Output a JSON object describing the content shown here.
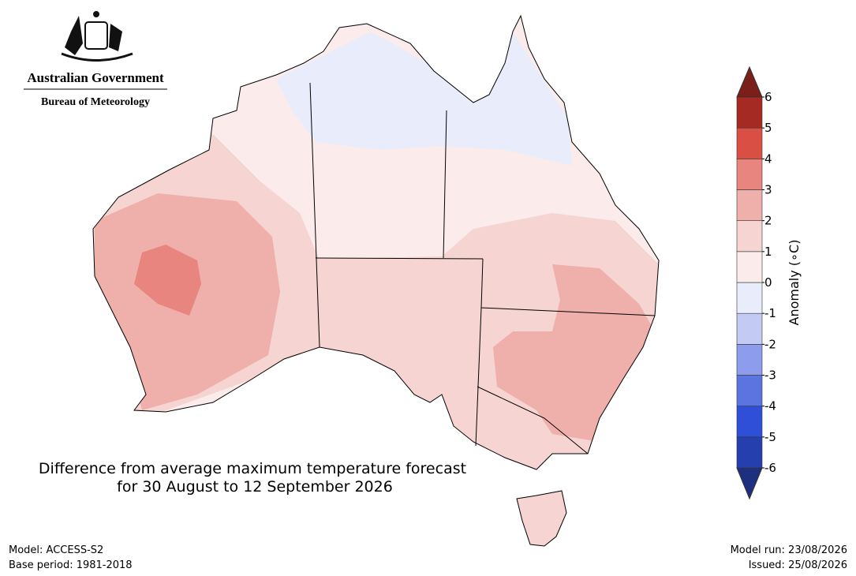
{
  "header": {
    "government": "Australian Government",
    "agency": "Bureau of Meteorology"
  },
  "title": {
    "line1": "Difference from average maximum temperature forecast",
    "line2": "for 30 August to 12 September 2026"
  },
  "colorbar": {
    "label": "Anomaly (∘C)",
    "ticks": [
      -6,
      -5,
      -4,
      -3,
      -2,
      -1,
      0,
      1,
      2,
      3,
      4,
      5,
      6
    ],
    "colors": [
      "#263fae",
      "#2f4fd8",
      "#5b74e0",
      "#8d9cec",
      "#c3cbf5",
      "#e8ecfb",
      "#fbeceb",
      "#f5d4d1",
      "#efafaa",
      "#e8857e",
      "#d94f44",
      "#a52a23"
    ],
    "under_color": "#1e2f80",
    "over_color": "#7a1f1a"
  },
  "footer": {
    "model": "Model: ACCESS-S2",
    "base_period": "Base period: 1981-2018",
    "model_run": "Model run: 23/08/2026",
    "issued": "Issued: 25/08/2026"
  }
}
